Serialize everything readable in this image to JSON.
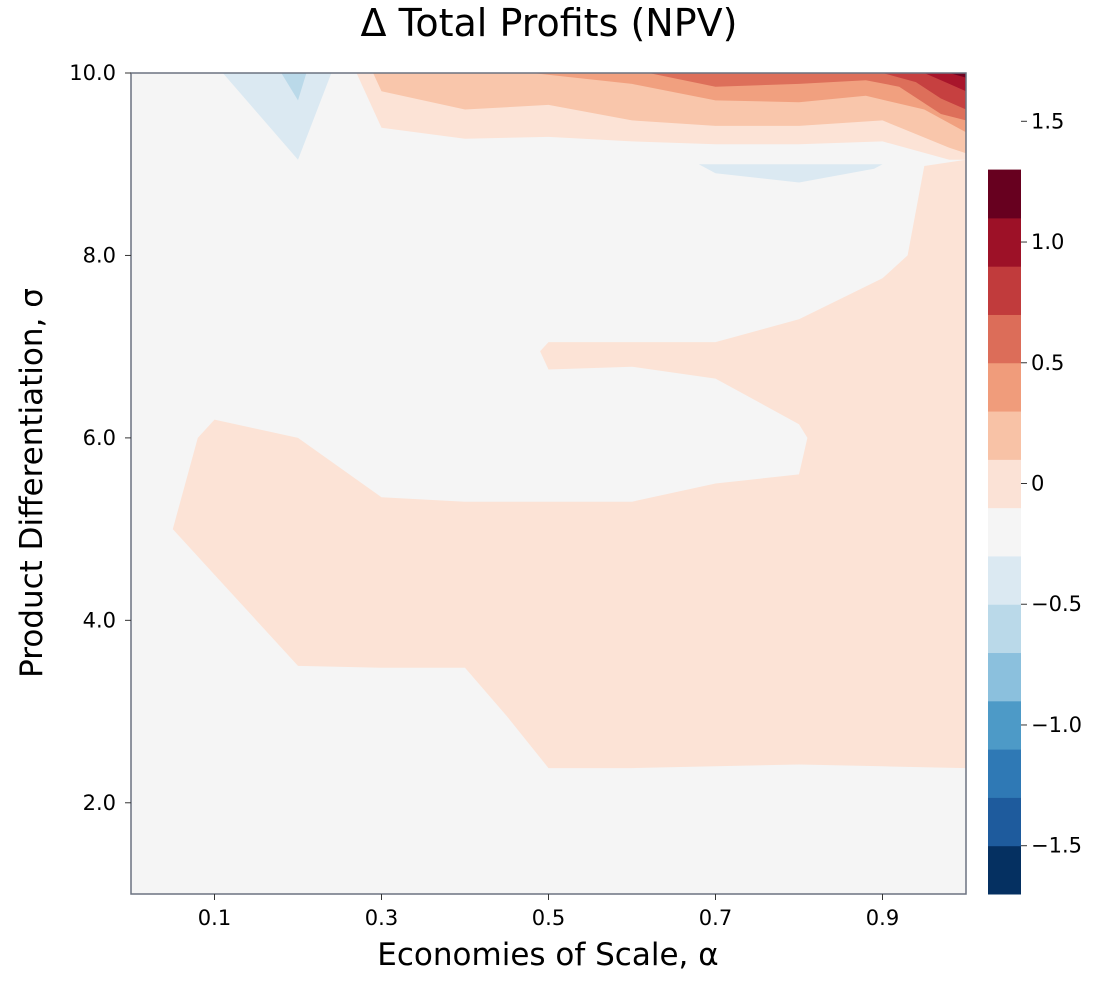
{
  "chart_data": {
    "type": "contour",
    "title": "Δ Total Profits (NPV)",
    "xlabel": "Economies of Scale, α",
    "ylabel": "Product Differentiation, σ",
    "xlim": [
      0.0,
      1.0
    ],
    "ylim": [
      1.0,
      10.0
    ],
    "x_ticks": [
      0.1,
      0.3,
      0.5,
      0.7,
      0.9
    ],
    "x_tick_labels": [
      "0.1",
      "0.3",
      "0.5",
      "0.7",
      "0.9"
    ],
    "y_ticks": [
      2.0,
      4.0,
      6.0,
      8.0,
      10.0
    ],
    "y_tick_labels": [
      "2.0",
      "4.0",
      "6.0",
      "8.0",
      "10.0"
    ],
    "grid": false,
    "background_level_color": "#f5f5f5",
    "colorbar": {
      "range": [
        -1.7,
        1.7
      ],
      "levels": [
        -1.7,
        -1.5,
        -1.3,
        -1.1,
        -0.9,
        -0.7,
        -0.5,
        -0.3,
        -0.1,
        0.1,
        0.3,
        0.5,
        0.7,
        0.9,
        1.1,
        1.3,
        1.5,
        1.7
      ],
      "colors": [
        "#053061",
        "#1e5b9d",
        "#2f79b5",
        "#4d9ac7",
        "#8bc0dd",
        "#bad9e9",
        "#dbe9f2",
        "#f5f5f5",
        "#fbe2d6",
        "#f8c2a6",
        "#f09c7b",
        "#dc6d59",
        "#c13b3c",
        "#9d1127",
        "#67001f"
      ],
      "ticks": [
        -1.5,
        -1.0,
        -0.5,
        0,
        0.5,
        1.0,
        1.5
      ],
      "tick_labels": [
        "−1.5",
        "−1.0",
        "−0.5",
        "0",
        "0.5",
        "1.0",
        "1.5"
      ]
    },
    "regions": [
      {
        "name": "main-positive-region",
        "level": 0.2,
        "color": "#fce3d6",
        "points": [
          [
            1.0,
            9.05
          ],
          [
            0.95,
            8.98
          ],
          [
            0.93,
            8.0
          ],
          [
            0.9,
            7.75
          ],
          [
            0.8,
            7.3
          ],
          [
            0.7,
            7.05
          ],
          [
            0.6,
            7.05
          ],
          [
            0.5,
            7.05
          ],
          [
            0.49,
            6.95
          ],
          [
            0.5,
            6.75
          ],
          [
            0.6,
            6.78
          ],
          [
            0.7,
            6.65
          ],
          [
            0.8,
            6.15
          ],
          [
            0.81,
            6.0
          ],
          [
            0.8,
            5.6
          ],
          [
            0.7,
            5.5
          ],
          [
            0.6,
            5.3
          ],
          [
            0.5,
            5.3
          ],
          [
            0.4,
            5.3
          ],
          [
            0.3,
            5.35
          ],
          [
            0.2,
            6.0
          ],
          [
            0.1,
            6.2
          ],
          [
            0.08,
            6.0
          ],
          [
            0.05,
            5.0
          ],
          [
            0.1,
            4.5
          ],
          [
            0.2,
            3.5
          ],
          [
            0.3,
            3.48
          ],
          [
            0.4,
            3.48
          ],
          [
            0.45,
            2.95
          ],
          [
            0.5,
            2.38
          ],
          [
            0.6,
            2.38
          ],
          [
            0.7,
            2.4
          ],
          [
            0.8,
            2.42
          ],
          [
            0.9,
            2.4
          ],
          [
            1.0,
            2.38
          ]
        ]
      },
      {
        "name": "top-band-level-1",
        "level": 0.2,
        "color": "#fce3d6",
        "points": [
          [
            0.27,
            10.0
          ],
          [
            0.3,
            9.4
          ],
          [
            0.4,
            9.28
          ],
          [
            0.5,
            9.3
          ],
          [
            0.6,
            9.25
          ],
          [
            0.7,
            9.22
          ],
          [
            0.8,
            9.22
          ],
          [
            0.9,
            9.25
          ],
          [
            0.98,
            9.05
          ],
          [
            1.0,
            9.05
          ],
          [
            1.0,
            10.0
          ]
        ]
      },
      {
        "name": "top-band-level-2",
        "level": 0.4,
        "color": "#f9c6ab",
        "points": [
          [
            0.29,
            10.0
          ],
          [
            0.3,
            9.8
          ],
          [
            0.4,
            9.6
          ],
          [
            0.5,
            9.65
          ],
          [
            0.6,
            9.48
          ],
          [
            0.7,
            9.42
          ],
          [
            0.8,
            9.42
          ],
          [
            0.9,
            9.48
          ],
          [
            0.98,
            9.18
          ],
          [
            1.0,
            9.12
          ],
          [
            1.0,
            10.0
          ]
        ]
      },
      {
        "name": "top-band-level-3",
        "level": 0.6,
        "color": "#f1a07f",
        "points": [
          [
            0.48,
            10.0
          ],
          [
            0.6,
            9.88
          ],
          [
            0.7,
            9.7
          ],
          [
            0.8,
            9.68
          ],
          [
            0.88,
            9.75
          ],
          [
            0.95,
            9.6
          ],
          [
            1.0,
            9.35
          ],
          [
            1.0,
            10.0
          ]
        ]
      },
      {
        "name": "top-band-level-4",
        "level": 0.8,
        "color": "#dd6f5a",
        "points": [
          [
            0.62,
            10.0
          ],
          [
            0.7,
            9.85
          ],
          [
            0.8,
            9.88
          ],
          [
            0.88,
            9.92
          ],
          [
            0.92,
            9.85
          ],
          [
            0.97,
            9.55
          ],
          [
            1.0,
            9.48
          ],
          [
            1.0,
            10.0
          ]
        ]
      },
      {
        "name": "top-band-level-5",
        "level": 1.0,
        "color": "#c64040",
        "points": [
          [
            0.9,
            10.0
          ],
          [
            0.94,
            9.9
          ],
          [
            0.97,
            9.72
          ],
          [
            1.0,
            9.6
          ],
          [
            1.0,
            10.0
          ]
        ]
      },
      {
        "name": "top-band-level-6",
        "level": 1.2,
        "color": "#a8152b",
        "points": [
          [
            0.95,
            10.0
          ],
          [
            0.98,
            9.88
          ],
          [
            1.0,
            9.8
          ],
          [
            1.0,
            10.0
          ]
        ]
      },
      {
        "name": "top-band-level-7",
        "level": 1.4,
        "color": "#6e0220",
        "points": [
          [
            0.98,
            10.0
          ],
          [
            1.0,
            9.95
          ],
          [
            1.0,
            10.0
          ]
        ]
      },
      {
        "name": "negative-region-top-left",
        "level": -0.2,
        "color": "#dbe9f2",
        "points": [
          [
            0.11,
            10.0
          ],
          [
            0.2,
            9.05
          ],
          [
            0.24,
            10.0
          ]
        ]
      },
      {
        "name": "negative-region-top-left-inner",
        "level": -0.4,
        "color": "#bad9e9",
        "points": [
          [
            0.18,
            10.0
          ],
          [
            0.2,
            9.7
          ],
          [
            0.21,
            10.0
          ]
        ]
      },
      {
        "name": "negative-region-right",
        "level": -0.2,
        "color": "#dbe9f2",
        "points": [
          [
            0.68,
            9.0
          ],
          [
            0.9,
            9.0
          ],
          [
            0.89,
            8.95
          ],
          [
            0.8,
            8.8
          ],
          [
            0.7,
            8.9
          ]
        ]
      }
    ]
  }
}
